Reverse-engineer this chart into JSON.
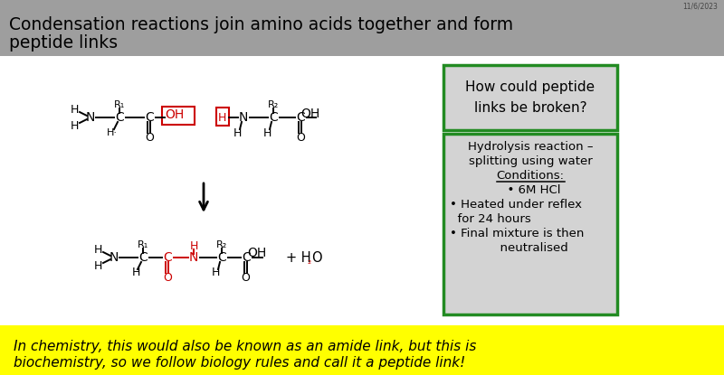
{
  "title_line1": "Condensation reactions join amino acids together and form",
  "title_line2": "peptide links",
  "title_bg": "#9E9E9E",
  "slide_bg": "#E8E8E8",
  "white_area_bg": "#FFFFFF",
  "yellow_bar_color": "#FFFF00",
  "yellow_bar_text1": "In chemistry, this would also be known as an amide link, but this is",
  "yellow_bar_text2": "biochemistry, so we follow biology rules and call it a peptide link!",
  "box1_bg": "#D3D3D3",
  "box1_border": "#228B22",
  "box2_bg": "#D3D3D3",
  "box2_border": "#228B22",
  "red_color": "#CC0000",
  "black_color": "#000000",
  "date_text": "11/6/2023"
}
